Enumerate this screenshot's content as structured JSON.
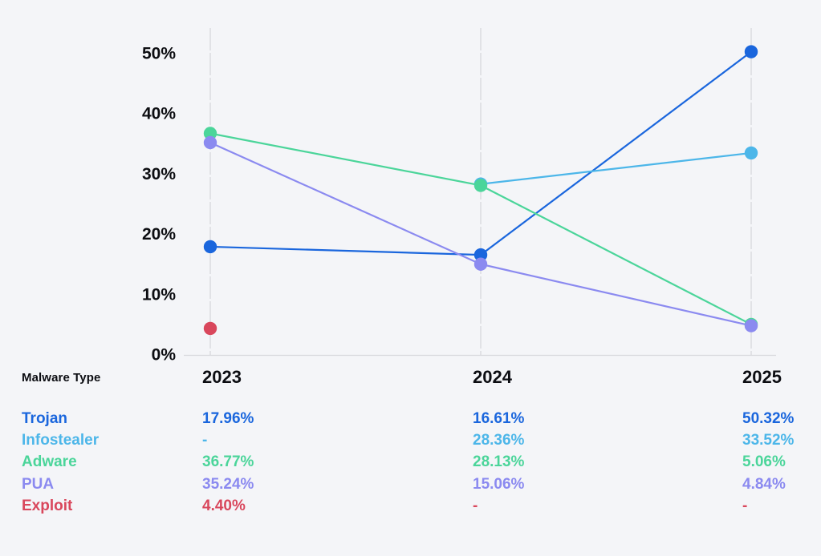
{
  "colors": {
    "background": "#f4f5f8",
    "text": "#0c0d12",
    "axis": "#d7d8dc",
    "gridline": "#e1e2e6",
    "trojan": "#1a66dd",
    "infostealer": "#4cb6e9",
    "adware": "#4bd59a",
    "pua": "#8b8af0",
    "exploit": "#d9475c"
  },
  "chart_data": {
    "type": "line",
    "categories": [
      "2023",
      "2024",
      "2025"
    ],
    "series": [
      {
        "name": "Trojan",
        "color": "#1a66dd",
        "values": [
          17.96,
          16.61,
          50.32
        ]
      },
      {
        "name": "Infostealer",
        "color": "#4cb6e9",
        "values": [
          null,
          28.36,
          33.52
        ]
      },
      {
        "name": "Adware",
        "color": "#4bd59a",
        "values": [
          36.77,
          28.13,
          5.06
        ]
      },
      {
        "name": "PUA",
        "color": "#8b8af0",
        "values": [
          35.24,
          15.06,
          4.84
        ]
      },
      {
        "name": "Exploit",
        "color": "#d9475c",
        "values": [
          4.4,
          null,
          null
        ]
      }
    ],
    "title": "",
    "xlabel": "",
    "ylabel": "",
    "ylim": [
      0,
      50
    ],
    "yticks": [
      "0%",
      "10%",
      "20%",
      "30%",
      "40%",
      "50%"
    ],
    "grid": "vertical-dashed-gridlines-per-year",
    "legend_position": "table-below-chart"
  },
  "table": {
    "header_label": "Malware Type",
    "columns": [
      "2023",
      "2024",
      "2025"
    ],
    "rows": [
      {
        "label": "Trojan",
        "color": "#1a66dd",
        "values": [
          "17.96%",
          "16.61%",
          "50.32%"
        ]
      },
      {
        "label": "Infostealer",
        "color": "#4cb6e9",
        "values": [
          "-",
          "28.36%",
          "33.52%"
        ]
      },
      {
        "label": "Adware",
        "color": "#4bd59a",
        "values": [
          "36.77%",
          "28.13%",
          "5.06%"
        ]
      },
      {
        "label": "PUA",
        "color": "#8b8af0",
        "values": [
          "35.24%",
          "15.06%",
          "4.84%"
        ]
      },
      {
        "label": "Exploit",
        "color": "#d9475c",
        "values": [
          "4.40%",
          "-",
          "-"
        ]
      }
    ]
  }
}
